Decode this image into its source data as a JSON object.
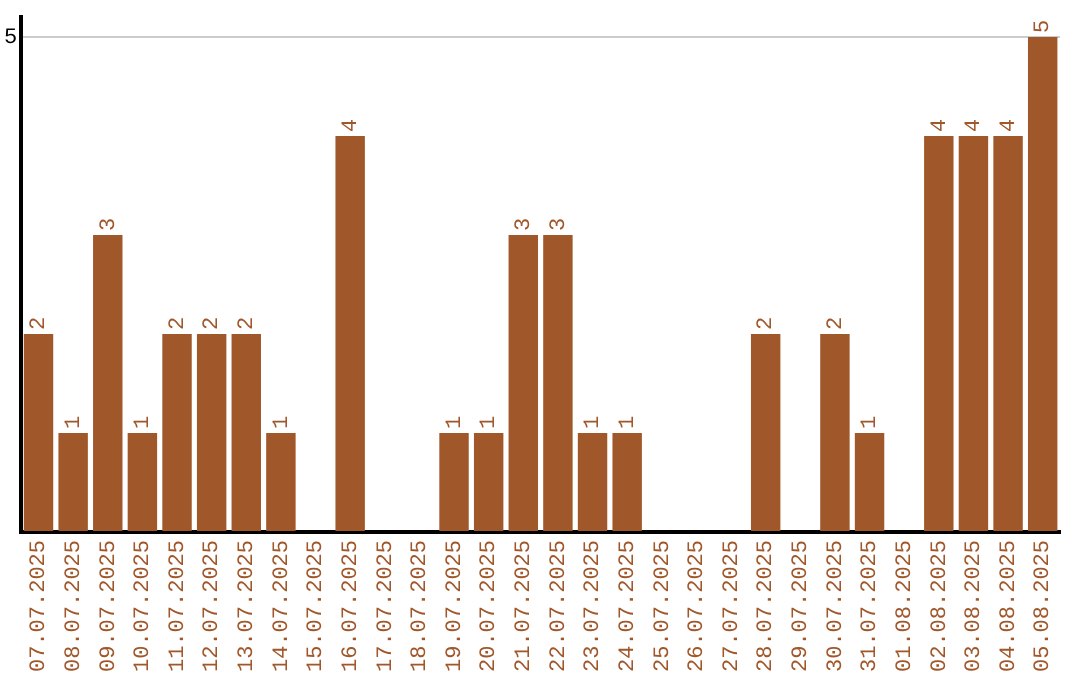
{
  "chart_data": {
    "type": "bar",
    "categories": [
      "07.07.2025",
      "08.07.2025",
      "09.07.2025",
      "10.07.2025",
      "11.07.2025",
      "12.07.2025",
      "13.07.2025",
      "14.07.2025",
      "15.07.2025",
      "16.07.2025",
      "17.07.2025",
      "18.07.2025",
      "19.07.2025",
      "20.07.2025",
      "21.07.2025",
      "22.07.2025",
      "23.07.2025",
      "24.07.2025",
      "25.07.2025",
      "26.07.2025",
      "27.07.2025",
      "28.07.2025",
      "29.07.2025",
      "30.07.2025",
      "31.07.2025",
      "01.08.2025",
      "02.08.2025",
      "03.08.2025",
      "04.08.2025",
      "05.08.2025"
    ],
    "values": [
      2,
      1,
      3,
      1,
      2,
      2,
      2,
      1,
      0,
      4,
      0,
      0,
      1,
      1,
      3,
      3,
      1,
      1,
      0,
      0,
      0,
      2,
      0,
      2,
      1,
      0,
      4,
      4,
      4,
      5
    ],
    "value_labels": [
      "2",
      "1",
      "3",
      "1",
      "2",
      "2",
      "2",
      "1",
      null,
      "4",
      null,
      null,
      "1",
      "1",
      "3",
      "3",
      "1",
      "1",
      null,
      null,
      null,
      "2",
      null,
      "2",
      "1",
      null,
      "4",
      "4",
      "4",
      "5"
    ],
    "color": "#a0572a",
    "ylim": [
      0,
      5.2
    ],
    "yticks": [
      {
        "value": 0,
        "label": null
      },
      5
    ],
    "grid": "y",
    "legend": false
  }
}
